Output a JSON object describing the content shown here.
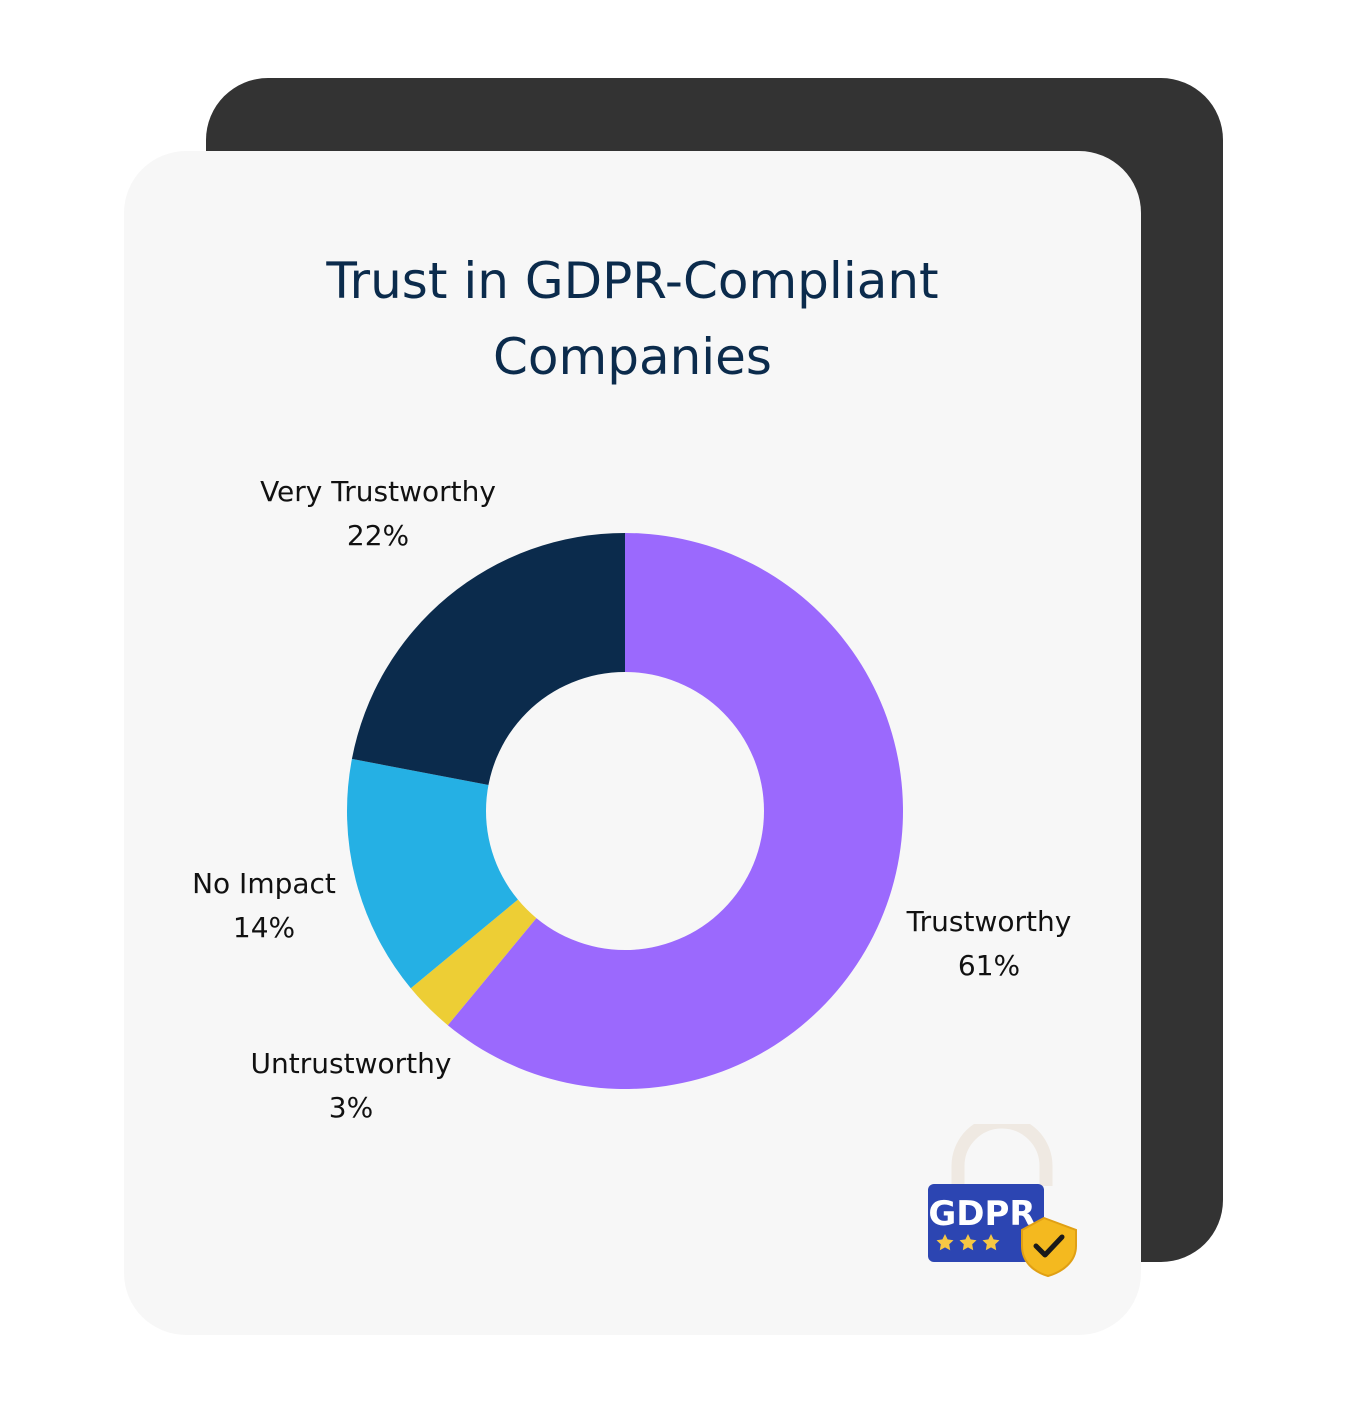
{
  "page": {
    "title_lines": [
      "Trust in GDPR-Compliant",
      "Companies"
    ],
    "badge": {
      "text": "GDPR",
      "icon": "gdpr-lock-shield-icon",
      "stars": 3
    }
  },
  "colors": {
    "back_card": "#333333",
    "front_card": "#f7f7f7",
    "title": "#0b2b4c",
    "hole": "#f7f7f7"
  },
  "chart_data": {
    "type": "pie",
    "style": "donut",
    "title": "Trust in GDPR-Compliant Companies",
    "slices": [
      {
        "label": "Trustworthy",
        "value": 61,
        "value_label": "61%",
        "color": "#9b69fd"
      },
      {
        "label": "Untrustworthy",
        "value": 3,
        "value_label": "3%",
        "color": "#edce35"
      },
      {
        "label": "No Impact",
        "value": 14,
        "value_label": "14%",
        "color": "#25b0e4"
      },
      {
        "label": "Very Trustworthy",
        "value": 22,
        "value_label": "22%",
        "color": "#0b2b4c"
      }
    ],
    "legend": "none",
    "start_angle": "12 o'clock",
    "direction": "clockwise"
  }
}
